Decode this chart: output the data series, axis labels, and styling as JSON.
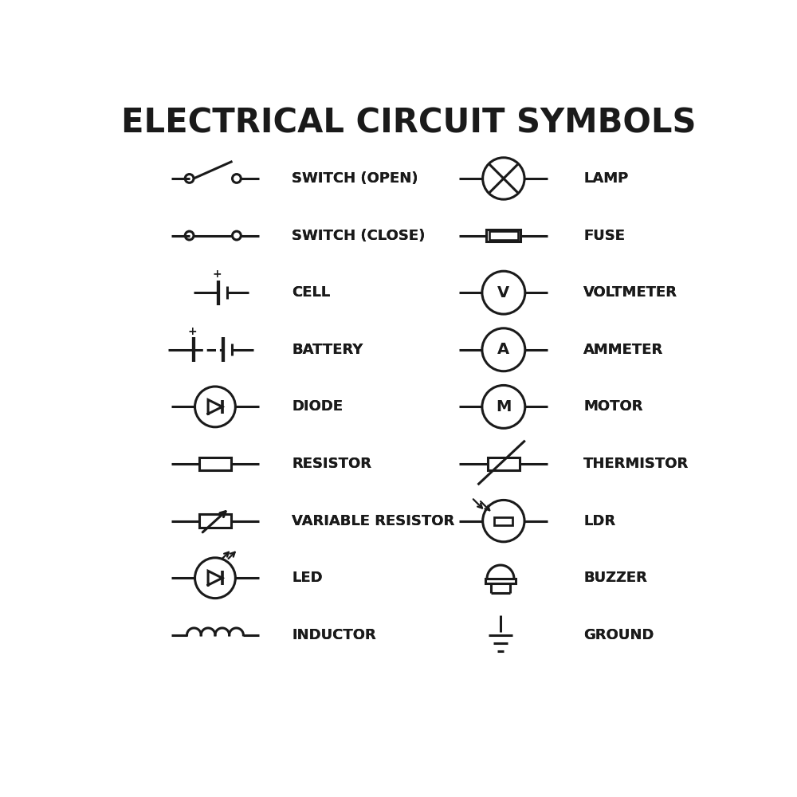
{
  "title": "ELECTRICAL CIRCUIT SYMBOLS",
  "title_fontsize": 30,
  "background_color": "#ffffff",
  "line_color": "#1a1a1a",
  "text_color": "#1a1a1a",
  "lw": 2.2,
  "label_fs": 13,
  "symbols": [
    {
      "name": "SWITCH (OPEN)",
      "col": 0,
      "row": 0
    },
    {
      "name": "SWITCH (CLOSE)",
      "col": 0,
      "row": 1
    },
    {
      "name": "CELL",
      "col": 0,
      "row": 2
    },
    {
      "name": "BATTERY",
      "col": 0,
      "row": 3
    },
    {
      "name": "DIODE",
      "col": 0,
      "row": 4
    },
    {
      "name": "RESISTOR",
      "col": 0,
      "row": 5
    },
    {
      "name": "VARIABLE RESISTOR",
      "col": 0,
      "row": 6
    },
    {
      "name": "LED",
      "col": 0,
      "row": 7
    },
    {
      "name": "INDUCTOR",
      "col": 0,
      "row": 8
    },
    {
      "name": "LAMP",
      "col": 1,
      "row": 0
    },
    {
      "name": "FUSE",
      "col": 1,
      "row": 1
    },
    {
      "name": "VOLTMETER",
      "col": 1,
      "row": 2
    },
    {
      "name": "AMMETER",
      "col": 1,
      "row": 3
    },
    {
      "name": "MOTOR",
      "col": 1,
      "row": 4
    },
    {
      "name": "THERMISTOR",
      "col": 1,
      "row": 5
    },
    {
      "name": "LDR",
      "col": 1,
      "row": 6
    },
    {
      "name": "BUZZER",
      "col": 1,
      "row": 7
    },
    {
      "name": "GROUND",
      "col": 1,
      "row": 8
    }
  ]
}
